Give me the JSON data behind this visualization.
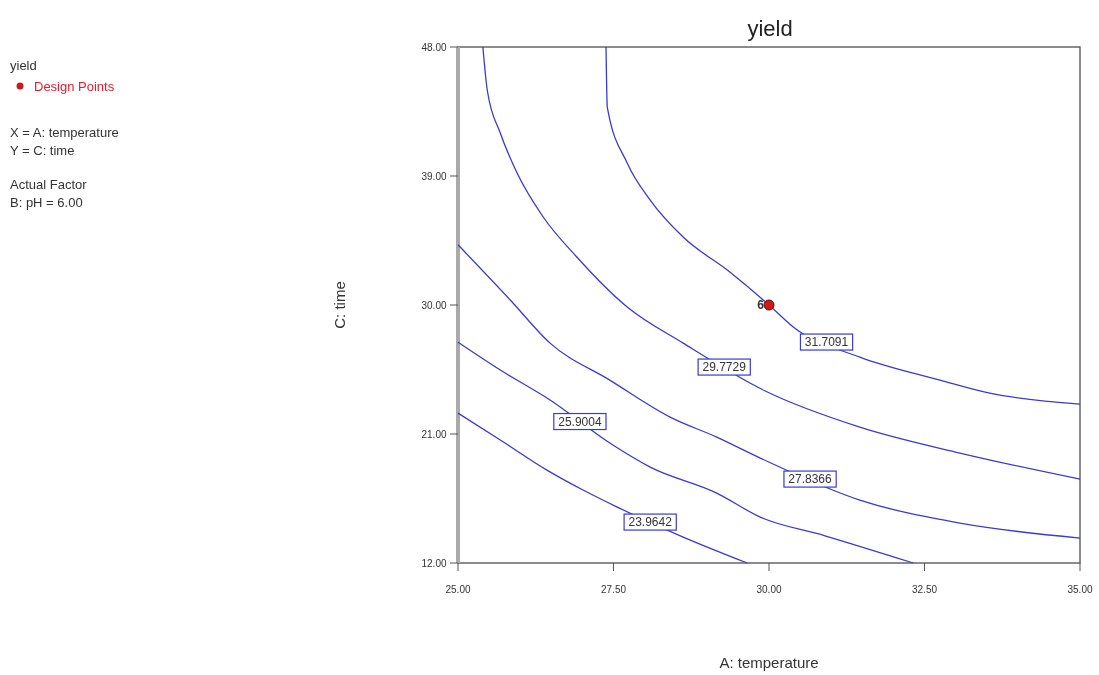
{
  "chart_data": {
    "type": "line",
    "title": "yield",
    "xlabel": "A: temperature",
    "ylabel": "C: time",
    "legend_title": "yield",
    "legend": "top left",
    "xlim": [
      25,
      35
    ],
    "ylim": [
      12,
      48
    ],
    "xticks": [
      {
        "value": 25,
        "label": "25.00"
      },
      {
        "value": 27.5,
        "label": "27.50"
      },
      {
        "value": 30,
        "label": "30.00"
      },
      {
        "value": 32.5,
        "label": "32.50"
      },
      {
        "value": 35,
        "label": "35.00"
      }
    ],
    "yticks": [
      {
        "value": 12,
        "label": "12.00"
      },
      {
        "value": 21,
        "label": "21.00"
      },
      {
        "value": 30,
        "label": "30.00"
      },
      {
        "value": 39,
        "label": "39.00"
      },
      {
        "value": 48,
        "label": "48.00"
      }
    ],
    "grid": false,
    "line_style": "solid",
    "series": [
      {
        "name": "31.7091",
        "color": "#3a3ad0",
        "x": [
          27.38,
          27.4,
          27.72,
          28.09,
          28.62,
          29.37,
          30,
          30.39,
          31.46,
          32.75,
          33.55,
          35
        ],
        "values": [
          48,
          43.81,
          39.91,
          37.32,
          34.74,
          32.3,
          30,
          28.46,
          26.37,
          24.76,
          23.85,
          23.09
        ]
      },
      {
        "name": "29.7729",
        "color": "#3a3ad0",
        "x": [
          25.4,
          25.47,
          25.68,
          25.95,
          26.37,
          26.91,
          27.72,
          28.62,
          29.94,
          31.46,
          33.07,
          35
        ],
        "values": [
          48,
          45,
          42,
          39.21,
          36.14,
          33.35,
          29.86,
          27.34,
          24,
          21.48,
          19.67,
          17.85
        ]
      },
      {
        "name": "27.8366",
        "color": "#3a3ad0",
        "x": [
          25,
          25.84,
          26.48,
          27.44,
          28.41,
          29.16,
          29.86,
          31.46,
          33.07,
          35
        ],
        "values": [
          34.2,
          30.35,
          27.34,
          24.76,
          22.18,
          20.78,
          19.32,
          16.39,
          14.78,
          13.74
        ]
      },
      {
        "name": "25.9004",
        "color": "#3a3ad0",
        "x": [
          25,
          25.68,
          26.48,
          27.44,
          28.09,
          29.16,
          29.86,
          30.9,
          32.32
        ],
        "values": [
          27.4,
          25.46,
          23.37,
          20.37,
          18.69,
          16.88,
          15.2,
          13.9,
          12
        ]
      },
      {
        "name": "23.9642",
        "color": "#3a3ad0",
        "x": [
          25,
          25.68,
          26.43,
          27.01,
          27.56,
          28.62,
          29.65
        ],
        "values": [
          22.46,
          20.58,
          18.48,
          17.09,
          15.9,
          13.81,
          12
        ]
      },
      {
        "name": "Design Points",
        "type": "scatter",
        "marker": "circle",
        "color": "#cc1a1a",
        "x": [
          30
        ],
        "values": [
          30
        ]
      }
    ],
    "annotations": [
      {
        "text": "6",
        "x": 30,
        "y": 30
      },
      "X = A: temperature",
      "Y = C: time",
      "Actual Factor",
      "B: pH = 6.00"
    ]
  }
}
